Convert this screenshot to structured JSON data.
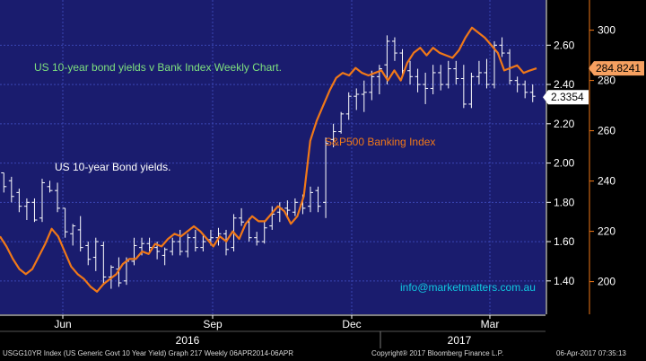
{
  "chart_data": {
    "type": "line",
    "title": "US 10-year bond yields v Bank Index Weekly Chart.",
    "annotations": {
      "yield_label": "US 10-year Bond yields.",
      "bank_label": "S&P500 Banking Index",
      "watermark": "info@marketmatters.com.au"
    },
    "x": {
      "month_ticks": [
        "Jun",
        "Sep",
        "Dec",
        "Mar"
      ],
      "year_ticks": [
        "2016",
        "2017"
      ]
    },
    "y_left": {
      "ticks": [
        "2.60",
        "2.40",
        "2.20",
        "2.00",
        "1.80",
        "1.60",
        "1.40"
      ],
      "range": [
        1.23,
        2.83
      ],
      "last_value": "2.3354"
    },
    "y_right": {
      "ticks": [
        "300",
        "280",
        "260",
        "240",
        "220",
        "200"
      ],
      "range": [
        187,
        312
      ],
      "last_value": "284.8241"
    },
    "series": [
      {
        "name": "US 10-year Bond yields.",
        "type": "ohlc",
        "color": "#ffffff",
        "bars": [
          [
            1.95,
            1.95,
            1.85,
            1.88
          ],
          [
            1.91,
            1.93,
            1.8,
            1.83
          ],
          [
            1.85,
            1.87,
            1.75,
            1.78
          ],
          [
            1.78,
            1.82,
            1.71,
            1.8
          ],
          [
            1.8,
            1.82,
            1.7,
            1.71
          ],
          [
            1.72,
            1.92,
            1.7,
            1.9
          ],
          [
            1.88,
            1.91,
            1.85,
            1.86
          ],
          [
            1.86,
            1.9,
            1.75,
            1.77
          ],
          [
            1.77,
            1.77,
            1.62,
            1.65
          ],
          [
            1.64,
            1.69,
            1.58,
            1.68
          ],
          [
            1.66,
            1.73,
            1.55,
            1.57
          ],
          [
            1.58,
            1.6,
            1.48,
            1.51
          ],
          [
            1.52,
            1.62,
            1.45,
            1.6
          ],
          [
            1.58,
            1.6,
            1.38,
            1.42
          ],
          [
            1.42,
            1.48,
            1.36,
            1.47
          ],
          [
            1.46,
            1.52,
            1.37,
            1.39
          ],
          [
            1.4,
            1.52,
            1.38,
            1.5
          ],
          [
            1.5,
            1.62,
            1.48,
            1.58
          ],
          [
            1.57,
            1.62,
            1.53,
            1.59
          ],
          [
            1.59,
            1.62,
            1.55,
            1.57
          ],
          [
            1.57,
            1.6,
            1.51,
            1.55
          ],
          [
            1.53,
            1.57,
            1.48,
            1.56
          ],
          [
            1.55,
            1.62,
            1.53,
            1.6
          ],
          [
            1.6,
            1.66,
            1.53,
            1.55
          ],
          [
            1.55,
            1.64,
            1.52,
            1.62
          ],
          [
            1.62,
            1.66,
            1.55,
            1.57
          ],
          [
            1.57,
            1.63,
            1.55,
            1.6
          ],
          [
            1.61,
            1.66,
            1.58,
            1.62
          ],
          [
            1.62,
            1.67,
            1.58,
            1.64
          ],
          [
            1.64,
            1.66,
            1.53,
            1.56
          ],
          [
            1.57,
            1.74,
            1.55,
            1.72
          ],
          [
            1.72,
            1.77,
            1.68,
            1.7
          ],
          [
            1.7,
            1.72,
            1.6,
            1.62
          ],
          [
            1.62,
            1.65,
            1.58,
            1.6
          ],
          [
            1.6,
            1.7,
            1.59,
            1.67
          ],
          [
            1.68,
            1.78,
            1.66,
            1.74
          ],
          [
            1.75,
            1.8,
            1.7,
            1.77
          ],
          [
            1.77,
            1.81,
            1.72,
            1.76
          ],
          [
            1.75,
            1.82,
            1.73,
            1.8
          ],
          [
            1.79,
            1.84,
            1.74,
            1.77
          ],
          [
            1.78,
            1.88,
            1.75,
            1.85
          ],
          [
            1.86,
            1.88,
            1.75,
            1.78
          ],
          [
            1.8,
            2.13,
            1.72,
            2.1
          ],
          [
            2.12,
            2.2,
            2.08,
            2.16
          ],
          [
            2.16,
            2.26,
            2.15,
            2.25
          ],
          [
            2.25,
            2.36,
            2.22,
            2.34
          ],
          [
            2.34,
            2.38,
            2.27,
            2.35
          ],
          [
            2.35,
            2.42,
            2.26,
            2.36
          ],
          [
            2.36,
            2.47,
            2.32,
            2.44
          ],
          [
            2.44,
            2.5,
            2.35,
            2.48
          ],
          [
            2.5,
            2.65,
            2.4,
            2.62
          ],
          [
            2.62,
            2.64,
            2.52,
            2.56
          ],
          [
            2.56,
            2.58,
            2.44,
            2.47
          ],
          [
            2.47,
            2.52,
            2.4,
            2.44
          ],
          [
            2.44,
            2.48,
            2.36,
            2.4
          ],
          [
            2.4,
            2.46,
            2.3,
            2.38
          ],
          [
            2.38,
            2.5,
            2.35,
            2.46
          ],
          [
            2.46,
            2.5,
            2.37,
            2.4
          ],
          [
            2.4,
            2.52,
            2.38,
            2.48
          ],
          [
            2.48,
            2.52,
            2.4,
            2.43
          ],
          [
            2.43,
            2.5,
            2.28,
            2.3
          ],
          [
            2.3,
            2.46,
            2.28,
            2.44
          ],
          [
            2.44,
            2.52,
            2.4,
            2.46
          ],
          [
            2.46,
            2.53,
            2.38,
            2.4
          ],
          [
            2.4,
            2.62,
            2.38,
            2.6
          ],
          [
            2.6,
            2.64,
            2.54,
            2.56
          ],
          [
            2.56,
            2.58,
            2.4,
            2.42
          ],
          [
            2.42,
            2.44,
            2.36,
            2.4
          ],
          [
            2.4,
            2.42,
            2.33,
            2.36
          ],
          [
            2.36,
            2.4,
            2.31,
            2.34
          ]
        ]
      },
      {
        "name": "S&P500 Banking Index",
        "type": "line",
        "color": "#f07818",
        "values": [
          218,
          214,
          209,
          205,
          203,
          205,
          210,
          215,
          221,
          218,
          212,
          206,
          203,
          201,
          198,
          196,
          199,
          201,
          203,
          207,
          209,
          209,
          212,
          211,
          215,
          214,
          217,
          219,
          218,
          220,
          222,
          220,
          217,
          214,
          218,
          216,
          220,
          217,
          223,
          226,
          224,
          224,
          227,
          230,
          228,
          223,
          226,
          234,
          256,
          264,
          270,
          276,
          281,
          283,
          282,
          285,
          283,
          282,
          283,
          284,
          280,
          284,
          280,
          287,
          291,
          293,
          290,
          293,
          291,
          290,
          289,
          292,
          297,
          301,
          299,
          297,
          294,
          291,
          284,
          285,
          286,
          283,
          284,
          284.8241
        ]
      }
    ]
  },
  "footer": {
    "left": "USGG10YR Index (US Generic Govt 10 Year Yield) Graph 217  Weekly 06APR2014-06APR",
    "center": "Copyright® 2017 Bloomberg Finance L.P.",
    "right": "06-Apr-2017 07:35:13"
  },
  "colors": {
    "plot_background": "#1a1c6e",
    "grid": "#3a46b4",
    "price_bars": "#ffffff",
    "bank_line": "#f07818",
    "title_text": "#7ee07e",
    "watermark_text": "#10c8e0",
    "axis_text": "#ffffff"
  }
}
